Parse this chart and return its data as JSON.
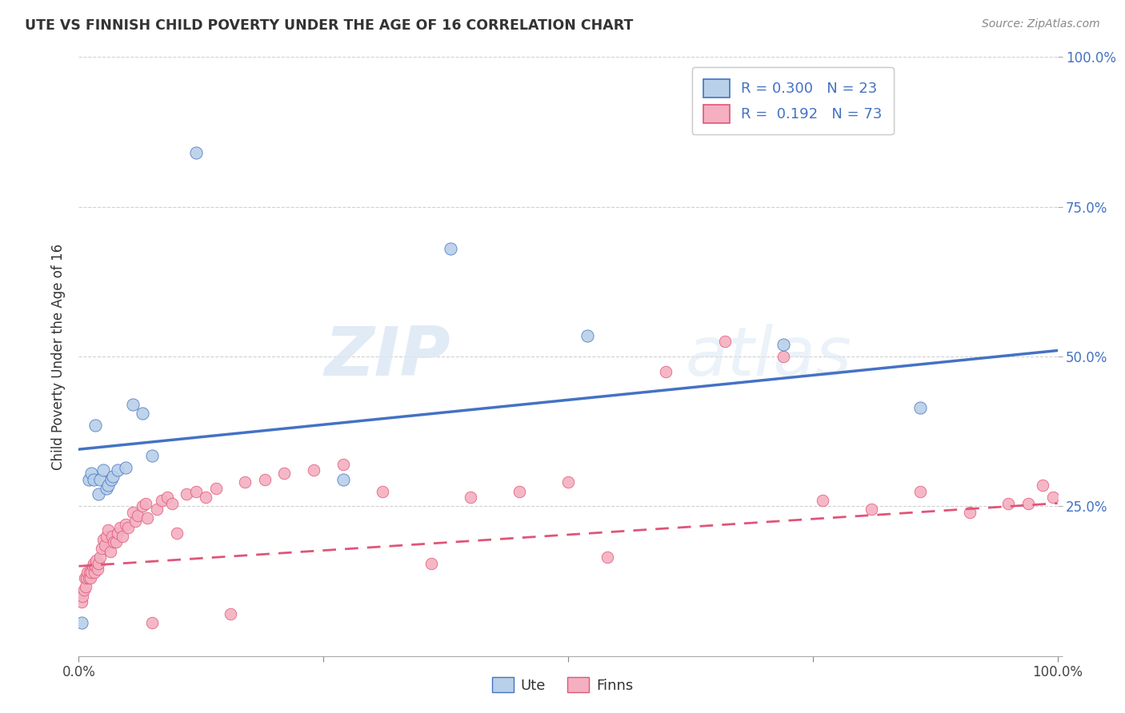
{
  "title": "UTE VS FINNISH CHILD POVERTY UNDER THE AGE OF 16 CORRELATION CHART",
  "source": "Source: ZipAtlas.com",
  "ylabel": "Child Poverty Under the Age of 16",
  "xlim": [
    0,
    1
  ],
  "ylim": [
    0,
    1
  ],
  "ute_color": "#b8d0e8",
  "finn_color": "#f4b0c0",
  "ute_line_color": "#4472c4",
  "finn_line_color": "#e05578",
  "ute_x": [
    0.003,
    0.01,
    0.013,
    0.015,
    0.017,
    0.02,
    0.022,
    0.025,
    0.028,
    0.03,
    0.033,
    0.035,
    0.04,
    0.048,
    0.055,
    0.065,
    0.075,
    0.12,
    0.27,
    0.38,
    0.52,
    0.72,
    0.86
  ],
  "ute_y": [
    0.055,
    0.295,
    0.305,
    0.295,
    0.385,
    0.27,
    0.295,
    0.31,
    0.28,
    0.285,
    0.295,
    0.3,
    0.31,
    0.315,
    0.42,
    0.405,
    0.335,
    0.84,
    0.295,
    0.68,
    0.535,
    0.52,
    0.415
  ],
  "finn_x": [
    0.003,
    0.004,
    0.005,
    0.006,
    0.007,
    0.008,
    0.009,
    0.01,
    0.011,
    0.012,
    0.013,
    0.014,
    0.015,
    0.016,
    0.017,
    0.018,
    0.019,
    0.02,
    0.022,
    0.023,
    0.025,
    0.027,
    0.028,
    0.03,
    0.032,
    0.034,
    0.036,
    0.038,
    0.04,
    0.042,
    0.045,
    0.048,
    0.05,
    0.055,
    0.058,
    0.06,
    0.065,
    0.068,
    0.07,
    0.075,
    0.08,
    0.085,
    0.09,
    0.095,
    0.1,
    0.11,
    0.12,
    0.13,
    0.14,
    0.155,
    0.17,
    0.19,
    0.21,
    0.24,
    0.27,
    0.31,
    0.36,
    0.4,
    0.45,
    0.5,
    0.54,
    0.6,
    0.66,
    0.72,
    0.76,
    0.81,
    0.86,
    0.91,
    0.95,
    0.97,
    0.985,
    0.995
  ],
  "finn_y": [
    0.09,
    0.1,
    0.11,
    0.13,
    0.115,
    0.13,
    0.14,
    0.13,
    0.14,
    0.13,
    0.14,
    0.15,
    0.155,
    0.14,
    0.15,
    0.16,
    0.145,
    0.155,
    0.165,
    0.18,
    0.195,
    0.185,
    0.2,
    0.21,
    0.175,
    0.2,
    0.19,
    0.19,
    0.205,
    0.215,
    0.2,
    0.22,
    0.215,
    0.24,
    0.225,
    0.235,
    0.25,
    0.255,
    0.23,
    0.055,
    0.245,
    0.26,
    0.265,
    0.255,
    0.205,
    0.27,
    0.275,
    0.265,
    0.28,
    0.07,
    0.29,
    0.295,
    0.305,
    0.31,
    0.32,
    0.275,
    0.155,
    0.265,
    0.275,
    0.29,
    0.165,
    0.475,
    0.525,
    0.5,
    0.26,
    0.245,
    0.275,
    0.24,
    0.255,
    0.255,
    0.285,
    0.265
  ],
  "ute_intercept": 0.345,
  "ute_slope": 0.165,
  "finn_intercept": 0.15,
  "finn_slope": 0.105
}
